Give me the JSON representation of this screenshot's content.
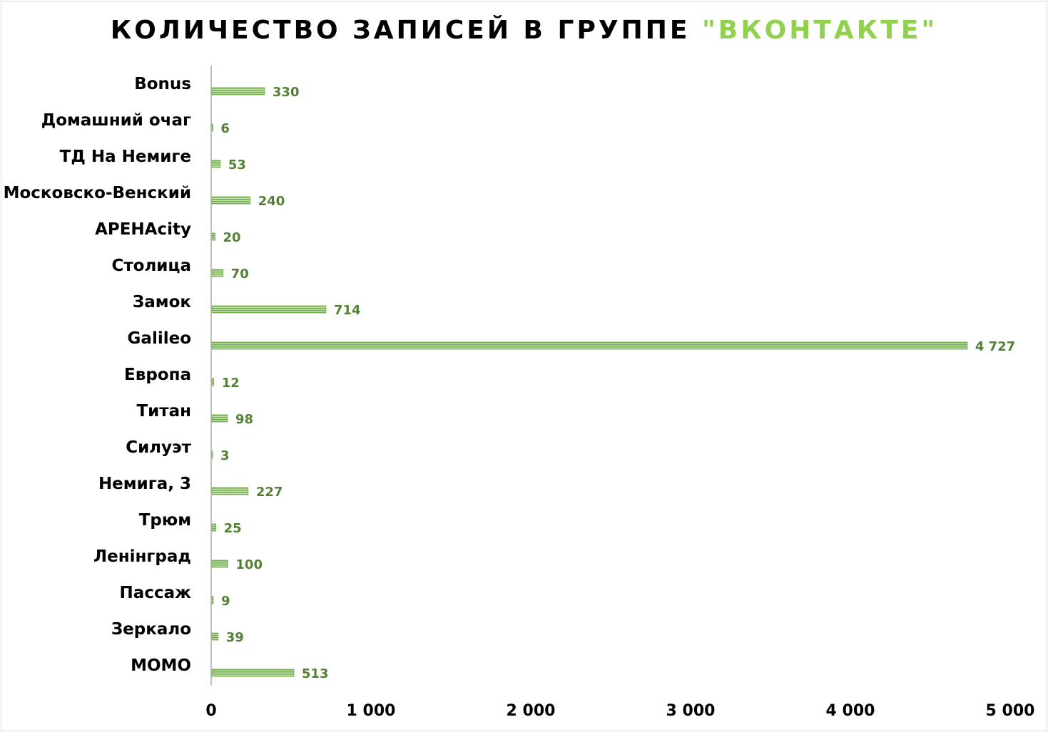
{
  "chart_data": {
    "type": "bar",
    "orientation": "horizontal",
    "title": "КОЛИЧЕСТВО ЗАПИСЕЙ В ГРУППЕ",
    "title_highlight": "\"ВКОНТАКТЕ\"",
    "categories": [
      "Bonus",
      "Домашний очаг",
      "ТД На Немиге",
      "Московско-Венский",
      "АРЕНAcity",
      "Столица",
      "Замок",
      "Galileo",
      "Европа",
      "Титан",
      "Силуэт",
      "Немига, 3",
      "Трюм",
      "Ленінград",
      "Пассаж",
      "Зеркало",
      "MOMO"
    ],
    "values": [
      330,
      6,
      53,
      240,
      20,
      70,
      714,
      4727,
      12,
      98,
      3,
      227,
      25,
      100,
      9,
      39,
      513
    ],
    "data_labels": [
      "330",
      "6",
      "53",
      "240",
      "20",
      "70",
      "714",
      "4 727",
      "12",
      "98",
      "3",
      "227",
      "25",
      "100",
      "9",
      "39",
      "513"
    ],
    "xlim": [
      0,
      5000
    ],
    "x_ticks": [
      0,
      1000,
      2000,
      3000,
      4000,
      5000
    ],
    "x_tick_labels": [
      "0",
      "1 000",
      "2 000",
      "3 000",
      "4 000",
      "5 000"
    ],
    "xlabel": "",
    "ylabel": "",
    "grid": false,
    "legend": "none",
    "bar_color": "#70ad47",
    "bar_stripe_color": "#c5e0b4",
    "data_label_color": "#538135",
    "title_accent_color": "#92d050"
  }
}
